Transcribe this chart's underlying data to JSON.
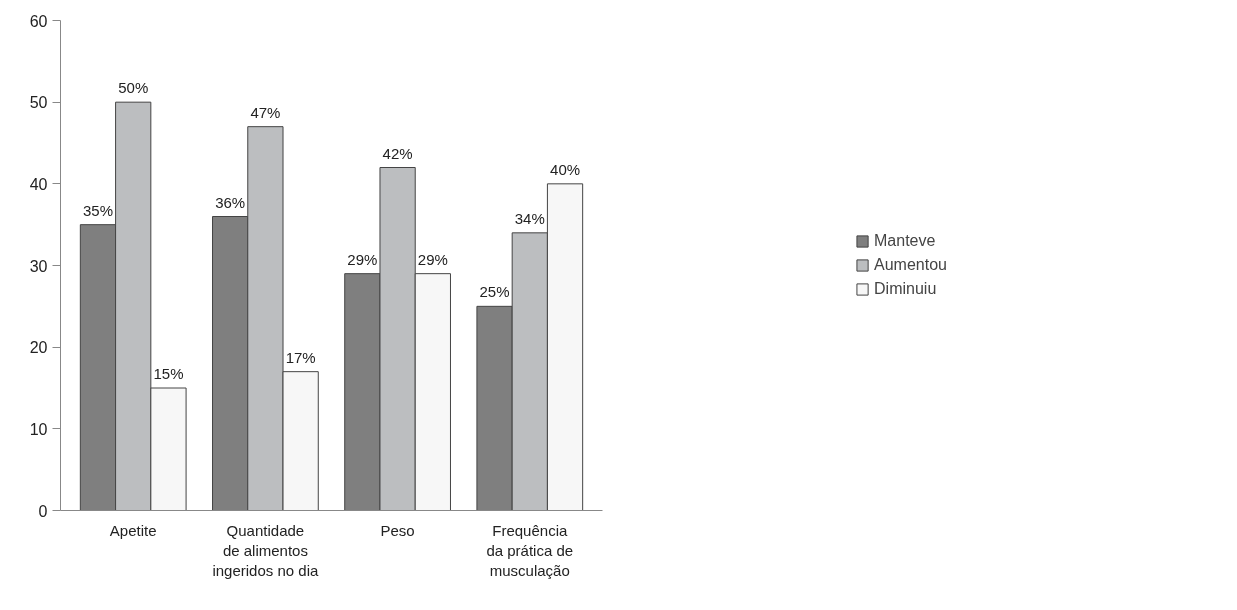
{
  "chart_data": {
    "type": "bar",
    "categories": [
      "Apetite",
      "Quantidade\nde alimentos\ningeridos no dia",
      "Peso",
      "Frequência\nda prática de\nmusculação"
    ],
    "series": [
      {
        "name": "Manteve",
        "color": "#7f7f7f",
        "values": [
          35,
          36,
          29,
          25
        ],
        "value_labels": [
          "35%",
          "36%",
          "29%",
          "25%"
        ]
      },
      {
        "name": "Aumentou",
        "color": "#bcbec0",
        "values": [
          50,
          47,
          42,
          34
        ],
        "value_labels": [
          "50%",
          "47%",
          "42%",
          "34%"
        ]
      },
      {
        "name": "Diminuiu",
        "color": "#f7f7f7",
        "values": [
          15,
          17,
          29,
          40
        ],
        "value_labels": [
          "15%",
          "17%",
          "29%",
          "40%"
        ]
      }
    ],
    "ylim": [
      0,
      60
    ],
    "yticks": [
      0,
      10,
      20,
      30,
      40,
      50,
      60
    ],
    "grid": false,
    "legend": "right"
  }
}
